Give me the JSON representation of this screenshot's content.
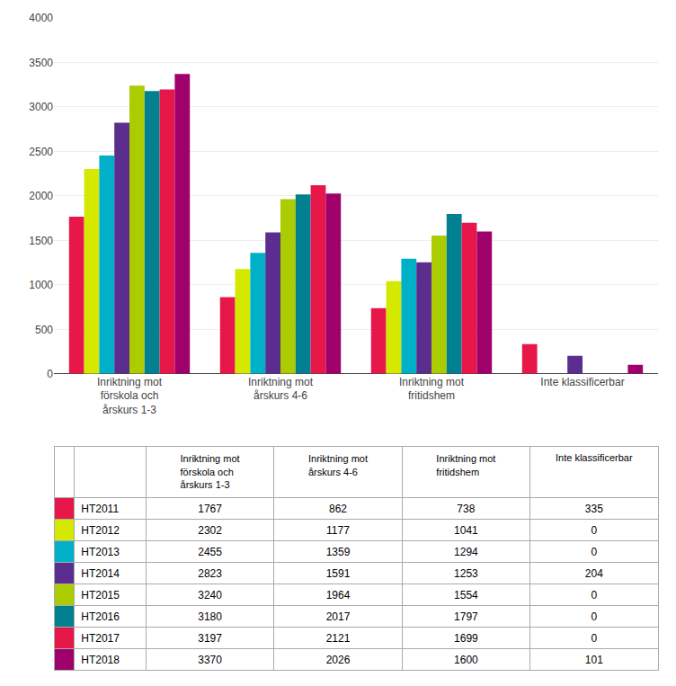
{
  "chart_data": {
    "type": "bar",
    "categories": [
      "Inriktning mot\nförskola och\nårskurs 1-3",
      "Inriktning mot\nårskurs 4-6",
      "Inriktning mot\nfritidshem",
      "Inte klassificerbar"
    ],
    "series": [
      {
        "name": "HT2011",
        "color": "#E8174A",
        "values": [
          1767,
          862,
          738,
          335
        ]
      },
      {
        "name": "HT2012",
        "color": "#D4E800",
        "values": [
          2302,
          1177,
          1041,
          0
        ]
      },
      {
        "name": "HT2013",
        "color": "#00B0C8",
        "values": [
          2455,
          1359,
          1294,
          0
        ]
      },
      {
        "name": "HT2014",
        "color": "#5B2D8E",
        "values": [
          2823,
          1591,
          1253,
          204
        ]
      },
      {
        "name": "HT2015",
        "color": "#AACC00",
        "values": [
          3240,
          1964,
          1554,
          0
        ]
      },
      {
        "name": "HT2016",
        "color": "#008090",
        "values": [
          3180,
          2017,
          1797,
          0
        ]
      },
      {
        "name": "HT2017",
        "color": "#E8174A",
        "values": [
          3197,
          2121,
          1699,
          0
        ]
      },
      {
        "name": "HT2018",
        "color": "#A0006A",
        "values": [
          3370,
          2026,
          1600,
          101
        ]
      }
    ],
    "ylim": [
      0,
      4000
    ],
    "yticks": [
      0,
      500,
      1000,
      1500,
      2000,
      2500,
      3000,
      3500,
      4000
    ],
    "grid": true
  }
}
